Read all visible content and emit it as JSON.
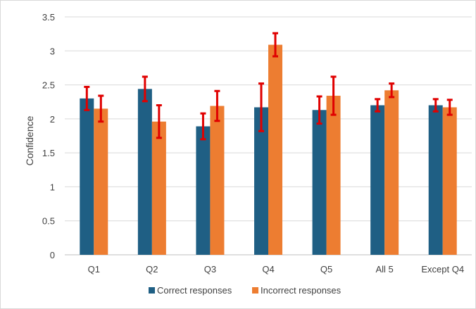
{
  "chart_data": {
    "type": "bar",
    "ylabel": "Confidence",
    "xlabel": "",
    "title": "",
    "ylim": [
      0,
      3.5
    ],
    "yticks": [
      0,
      0.5,
      1,
      1.5,
      2,
      2.5,
      3,
      3.5
    ],
    "ytick_labels": [
      "0",
      "0.5",
      "1",
      "1.5",
      "2",
      "2.5",
      "3",
      "3.5"
    ],
    "categories": [
      "Q1",
      "Q2",
      "Q3",
      "Q4",
      "Q5",
      "All 5",
      "Except Q4"
    ],
    "series": [
      {
        "name": "Correct responses",
        "color": "#1f5f84",
        "values": [
          2.3,
          2.44,
          1.89,
          2.17,
          2.13,
          2.2,
          2.2
        ],
        "error": [
          0.17,
          0.18,
          0.19,
          0.35,
          0.2,
          0.09,
          0.09
        ]
      },
      {
        "name": "Incorrect responses",
        "color": "#ed7d31",
        "values": [
          2.15,
          1.96,
          2.19,
          3.09,
          2.34,
          2.42,
          2.17
        ],
        "error": [
          0.19,
          0.24,
          0.22,
          0.17,
          0.28,
          0.1,
          0.11
        ]
      }
    ],
    "error_bar_color": "#e00000",
    "grid": true,
    "legend_position": "bottom"
  }
}
